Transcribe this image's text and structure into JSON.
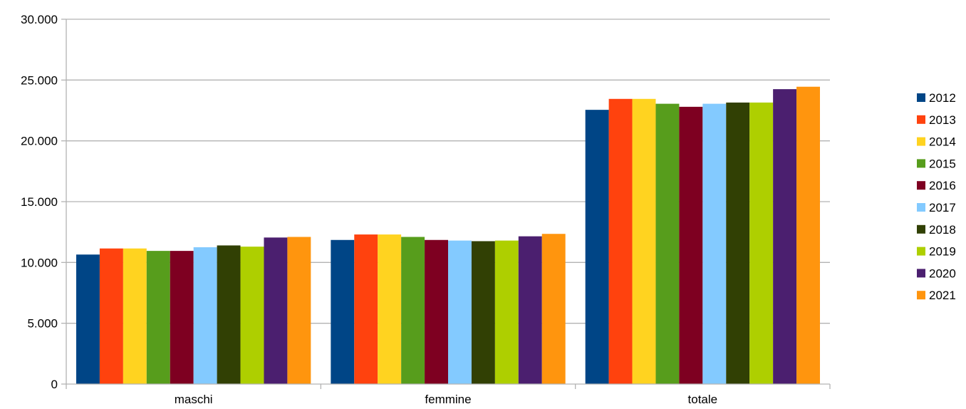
{
  "chart_data": {
    "type": "bar",
    "title": "",
    "xlabel": "",
    "ylabel": "",
    "categories": [
      "maschi",
      "femmine",
      "totale"
    ],
    "ylim": [
      0,
      30000
    ],
    "yticks": [
      0,
      5000,
      10000,
      15000,
      20000,
      25000,
      30000
    ],
    "ytick_labels": [
      "0",
      "5.000",
      "10.000",
      "15.000",
      "20.000",
      "25.000",
      "30.000"
    ],
    "grid": true,
    "legend_position": "right",
    "series": [
      {
        "name": "2012",
        "color": "#004586",
        "values": [
          10650,
          11850,
          22550
        ]
      },
      {
        "name": "2013",
        "color": "#ff420e",
        "values": [
          11150,
          12300,
          23450
        ]
      },
      {
        "name": "2014",
        "color": "#ffd320",
        "values": [
          11150,
          12300,
          23450
        ]
      },
      {
        "name": "2015",
        "color": "#579d1c",
        "values": [
          10950,
          12100,
          23050
        ]
      },
      {
        "name": "2016",
        "color": "#7e0021",
        "values": [
          10950,
          11850,
          22800
        ]
      },
      {
        "name": "2017",
        "color": "#83caff",
        "values": [
          11250,
          11800,
          23050
        ]
      },
      {
        "name": "2018",
        "color": "#314004",
        "values": [
          11400,
          11750,
          23150
        ]
      },
      {
        "name": "2019",
        "color": "#aecf00",
        "values": [
          11300,
          11800,
          23150
        ]
      },
      {
        "name": "2020",
        "color": "#4b1f6f",
        "values": [
          12050,
          12150,
          24250
        ]
      },
      {
        "name": "2021",
        "color": "#ff950e",
        "values": [
          12100,
          12350,
          24450
        ]
      }
    ]
  }
}
